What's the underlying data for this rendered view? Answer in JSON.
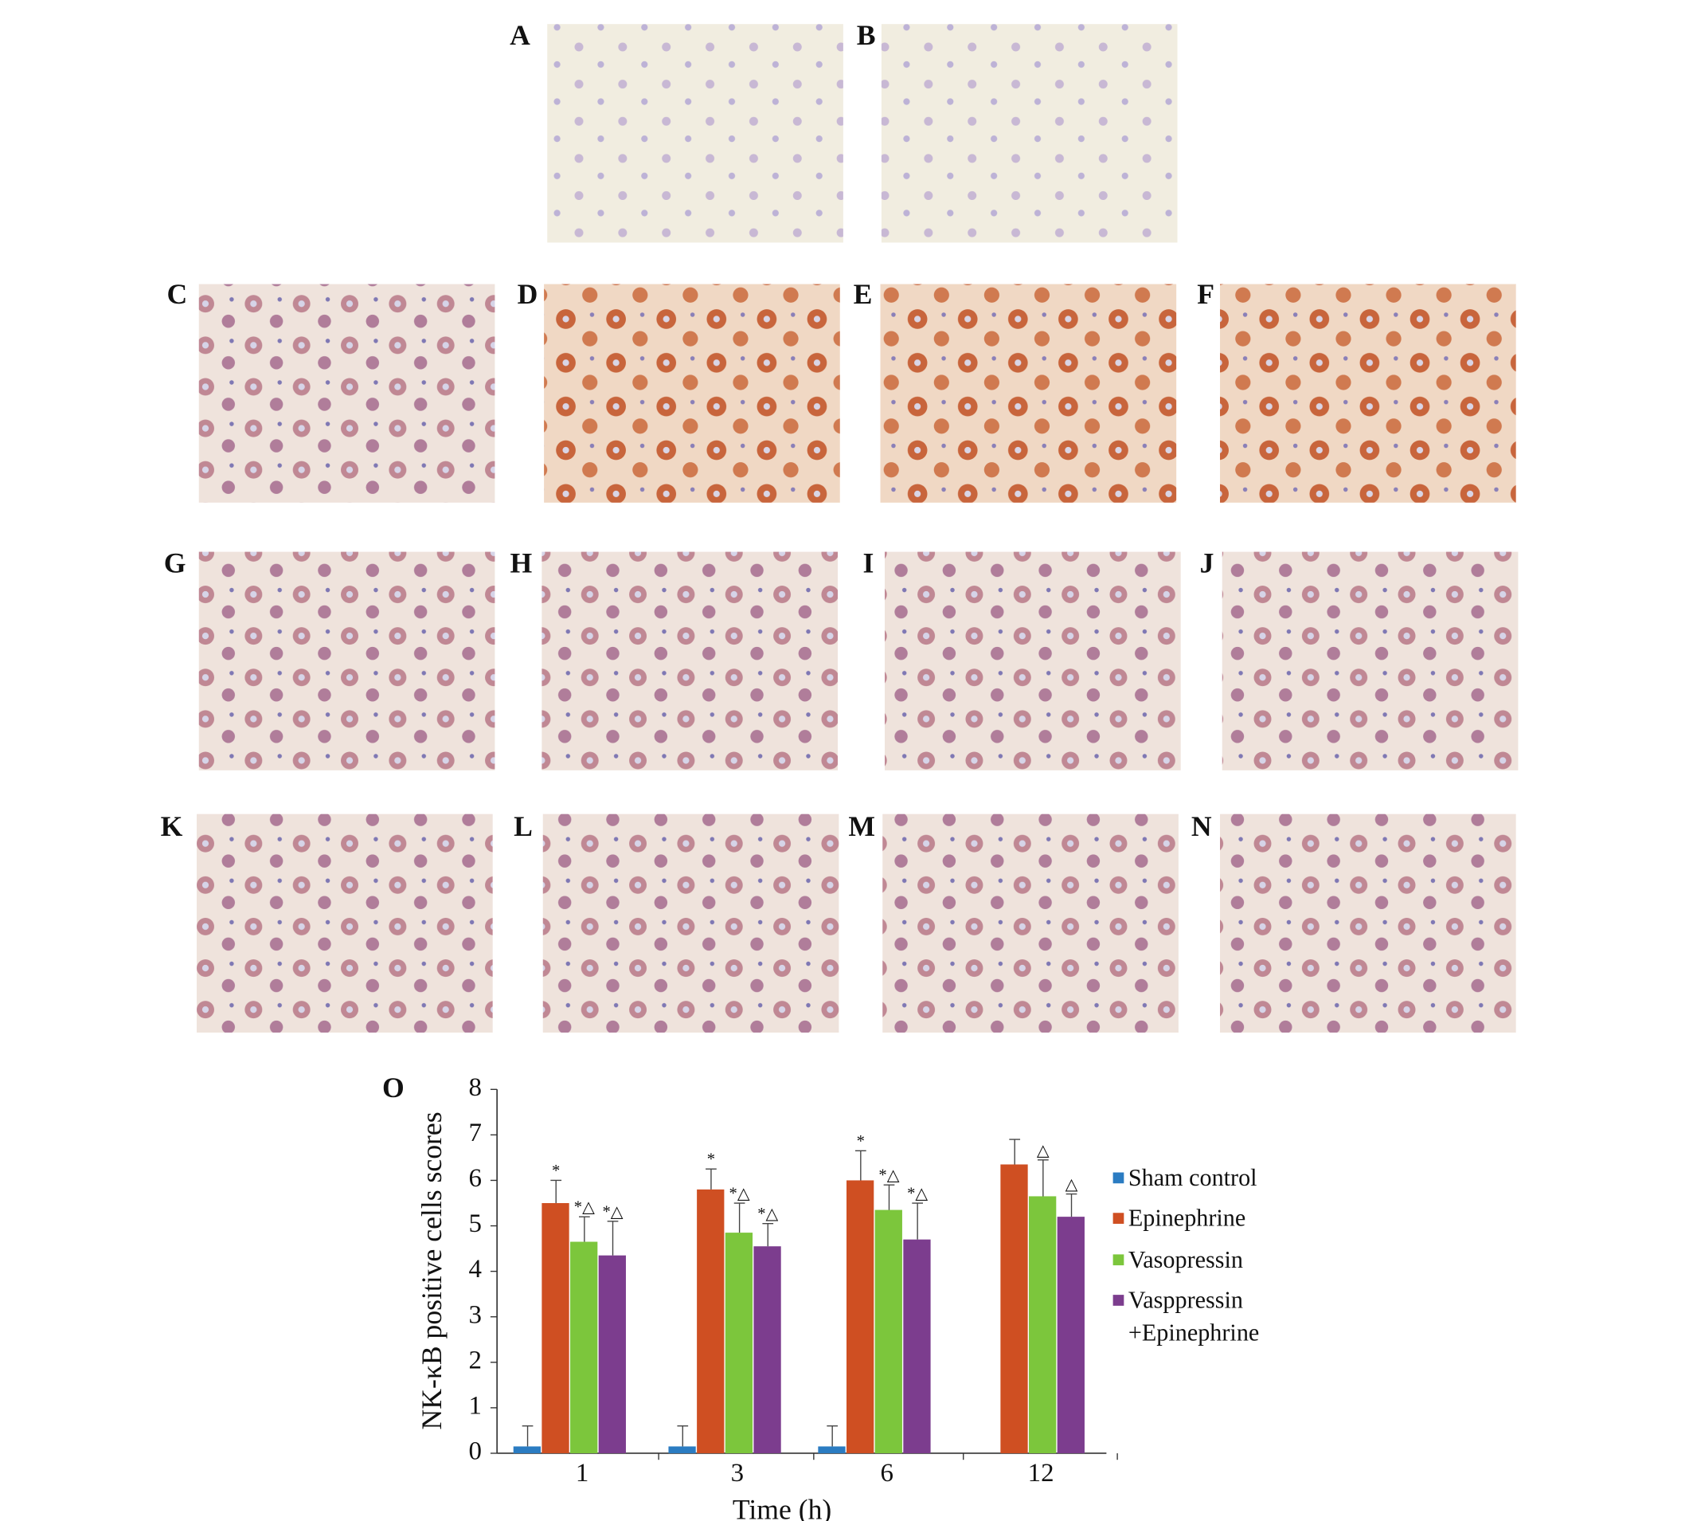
{
  "panels": [
    {
      "label": "A"
    },
    {
      "label": "B"
    },
    {
      "label": "C"
    },
    {
      "label": "D"
    },
    {
      "label": "E"
    },
    {
      "label": "F"
    },
    {
      "label": "G"
    },
    {
      "label": "H"
    },
    {
      "label": "I"
    },
    {
      "label": "J"
    },
    {
      "label": "K"
    },
    {
      "label": "L"
    },
    {
      "label": "M"
    },
    {
      "label": "N"
    }
  ],
  "chart_data": {
    "type": "bar",
    "panel_label": "O",
    "x_label": "Time (h)",
    "y_label": "NK-κB positive cells scores",
    "categories": [
      "1",
      "3",
      "6",
      "12"
    ],
    "ylim": [
      0,
      8
    ],
    "yticks": [
      0,
      1,
      2,
      3,
      4,
      5,
      6,
      7,
      8
    ],
    "series": [
      {
        "name": "Sham control",
        "color": "#2b7cc2",
        "values": [
          0.15,
          0.15,
          0.15,
          null
        ],
        "errors": [
          0.45,
          0.45,
          0.45,
          null
        ],
        "annotations": [
          null,
          null,
          null,
          null
        ]
      },
      {
        "name": "Epinephrine",
        "color": "#cf4f22",
        "values": [
          5.5,
          5.8,
          6.0,
          6.35
        ],
        "errors": [
          0.5,
          0.45,
          0.65,
          0.55
        ],
        "annotations": [
          "*",
          "*",
          "*",
          null
        ]
      },
      {
        "name": "Vasopressin",
        "color": "#7cc63c",
        "values": [
          4.65,
          4.85,
          5.35,
          5.65
        ],
        "errors": [
          0.55,
          0.65,
          0.55,
          0.8
        ],
        "annotations": [
          "*△",
          "*△",
          "*△",
          "△"
        ]
      },
      {
        "name": "Vasppressin +Epinephrine",
        "color": "#7c3d8e",
        "values": [
          4.35,
          4.55,
          4.7,
          5.2
        ],
        "errors": [
          0.75,
          0.5,
          0.8,
          0.5
        ],
        "annotations": [
          "*△",
          "*△",
          "*△",
          "△"
        ]
      }
    ]
  }
}
